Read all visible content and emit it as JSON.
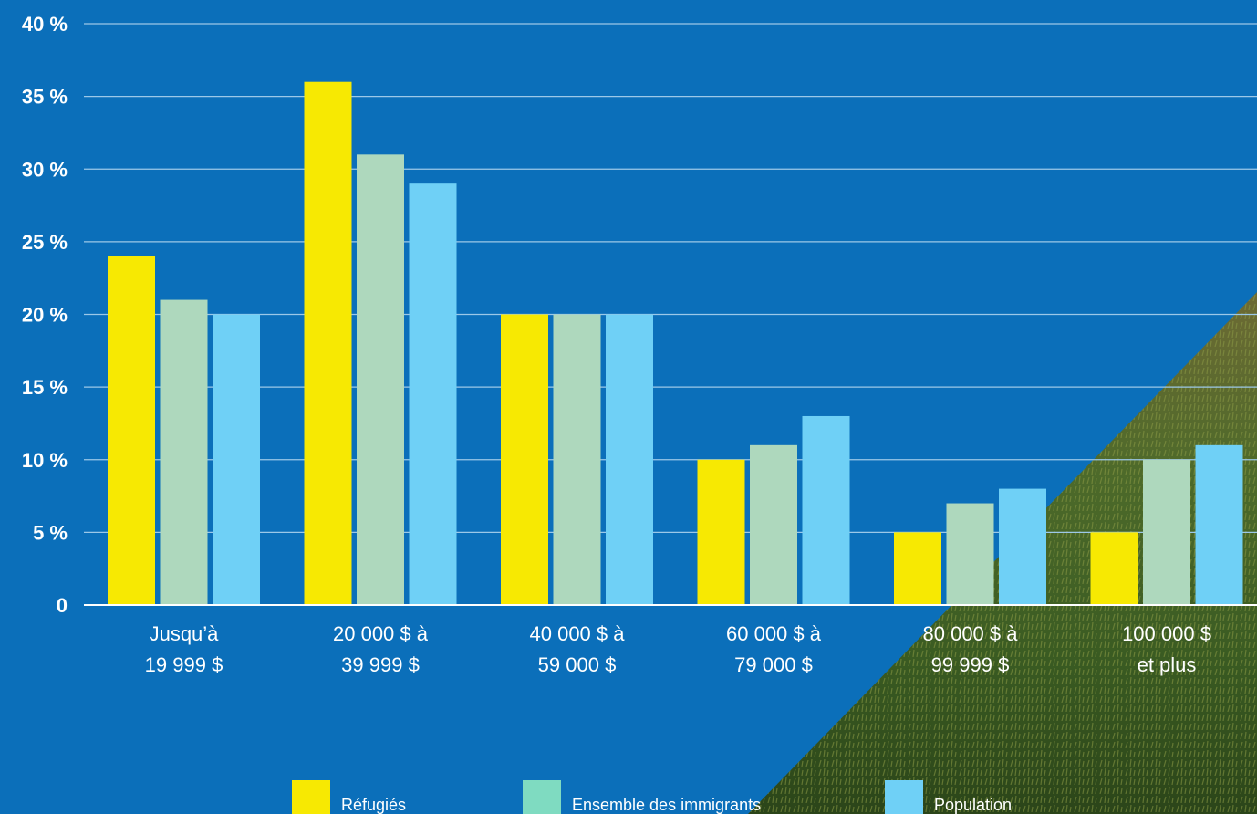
{
  "colors": {
    "background": "#0b6fba",
    "gridline": "#9cc8e8",
    "axis": "#ffffff",
    "refugies": "#f7e902",
    "ensemble_immigrants": "#aed8bd",
    "population": "#6fd0f6",
    "legend_ensemble_immigrants": "#7fdbc1",
    "photo_field_dark": "#2d4a1c",
    "photo_field_light": "#7a8a3a"
  },
  "chart_data": {
    "type": "bar",
    "title": "",
    "xlabel": "",
    "ylabel": "",
    "ylim": [
      0,
      40
    ],
    "yticks": [
      0,
      5,
      10,
      15,
      20,
      25,
      30,
      35,
      40
    ],
    "ytick_labels": [
      "0",
      "5 %",
      "10 %",
      "15 %",
      "20 %",
      "25 %",
      "30 %",
      "35 %",
      "40 %"
    ],
    "grid": true,
    "legend_position": "bottom",
    "categories": [
      [
        "Jusqu’à",
        "19 999 $"
      ],
      [
        "20 000 $ à",
        "39 999 $"
      ],
      [
        "40 000 $ à",
        "59 000 $"
      ],
      [
        "60 000 $ à",
        "79 000 $"
      ],
      [
        "80 000 $ à",
        "99 999 $"
      ],
      [
        "100 000 $",
        "et plus"
      ]
    ],
    "series": [
      {
        "name": "Réfugiés",
        "color_key": "refugies",
        "values": [
          24,
          36,
          20,
          10,
          5,
          5
        ]
      },
      {
        "name": "Ensemble des immigrants",
        "color_key": "ensemble_immigrants",
        "values": [
          21,
          31,
          20,
          11,
          7,
          10
        ]
      },
      {
        "name": "Population",
        "color_key": "population",
        "values": [
          20,
          29,
          20,
          13,
          8,
          11
        ]
      }
    ]
  }
}
